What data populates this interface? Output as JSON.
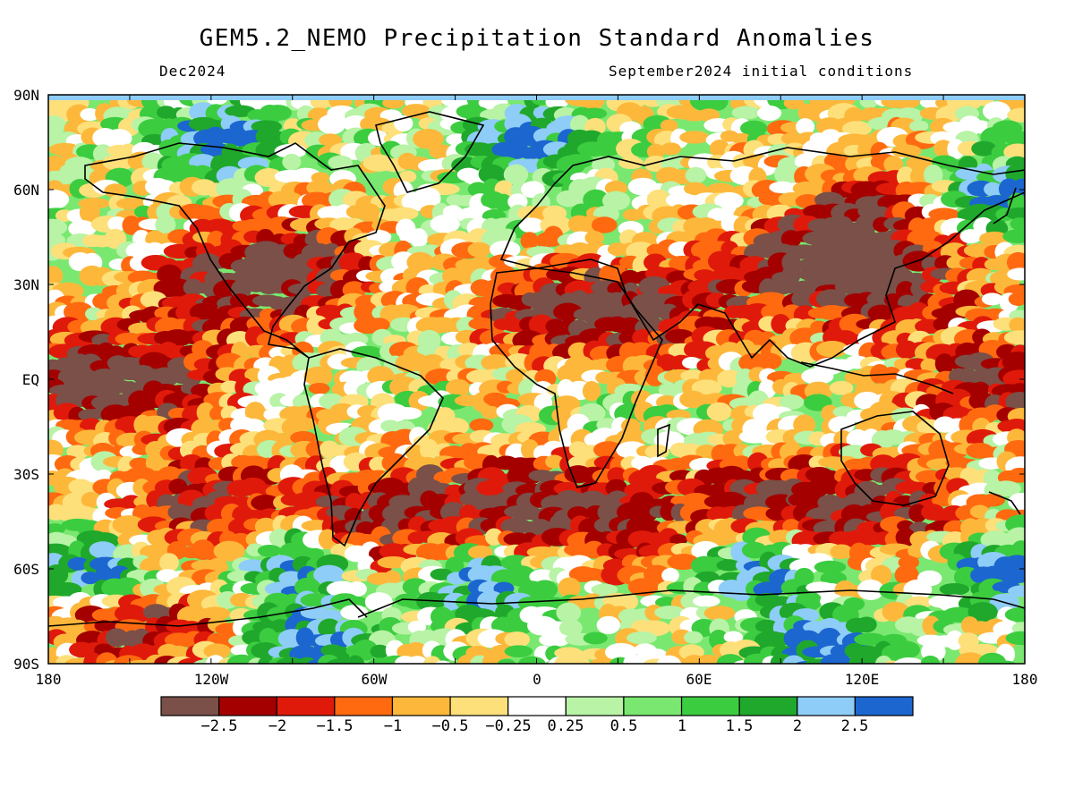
{
  "title": "GEM5.2_NEMO Precipitation Standard Anomalies",
  "period": "Dec2024",
  "initial_conditions": "September2024 initial conditions",
  "lat_labels": [
    "90N",
    "60N",
    "30N",
    "EQ",
    "30S",
    "60S",
    "90S"
  ],
  "lon_labels": [
    "180",
    "120W",
    "60W",
    "0",
    "60E",
    "120E",
    "180"
  ],
  "colorbar": {
    "colors": [
      "#7a5048",
      "#a50000",
      "#e01a0a",
      "#ff6a10",
      "#fdb83b",
      "#fde07a",
      "#ffffff",
      "#b8f3a6",
      "#7ae870",
      "#3ccc40",
      "#20a82c",
      "#8ecdf7",
      "#1c66d0"
    ],
    "labels": [
      "−2.5",
      "−2",
      "−1.5",
      "−1",
      "−0.5",
      "−0.25",
      "0.25",
      "0.5",
      "1",
      "1.5",
      "2",
      "2.5"
    ]
  },
  "map_extent": {
    "lon": [
      -180,
      180
    ],
    "lat": [
      -90,
      90
    ]
  }
}
